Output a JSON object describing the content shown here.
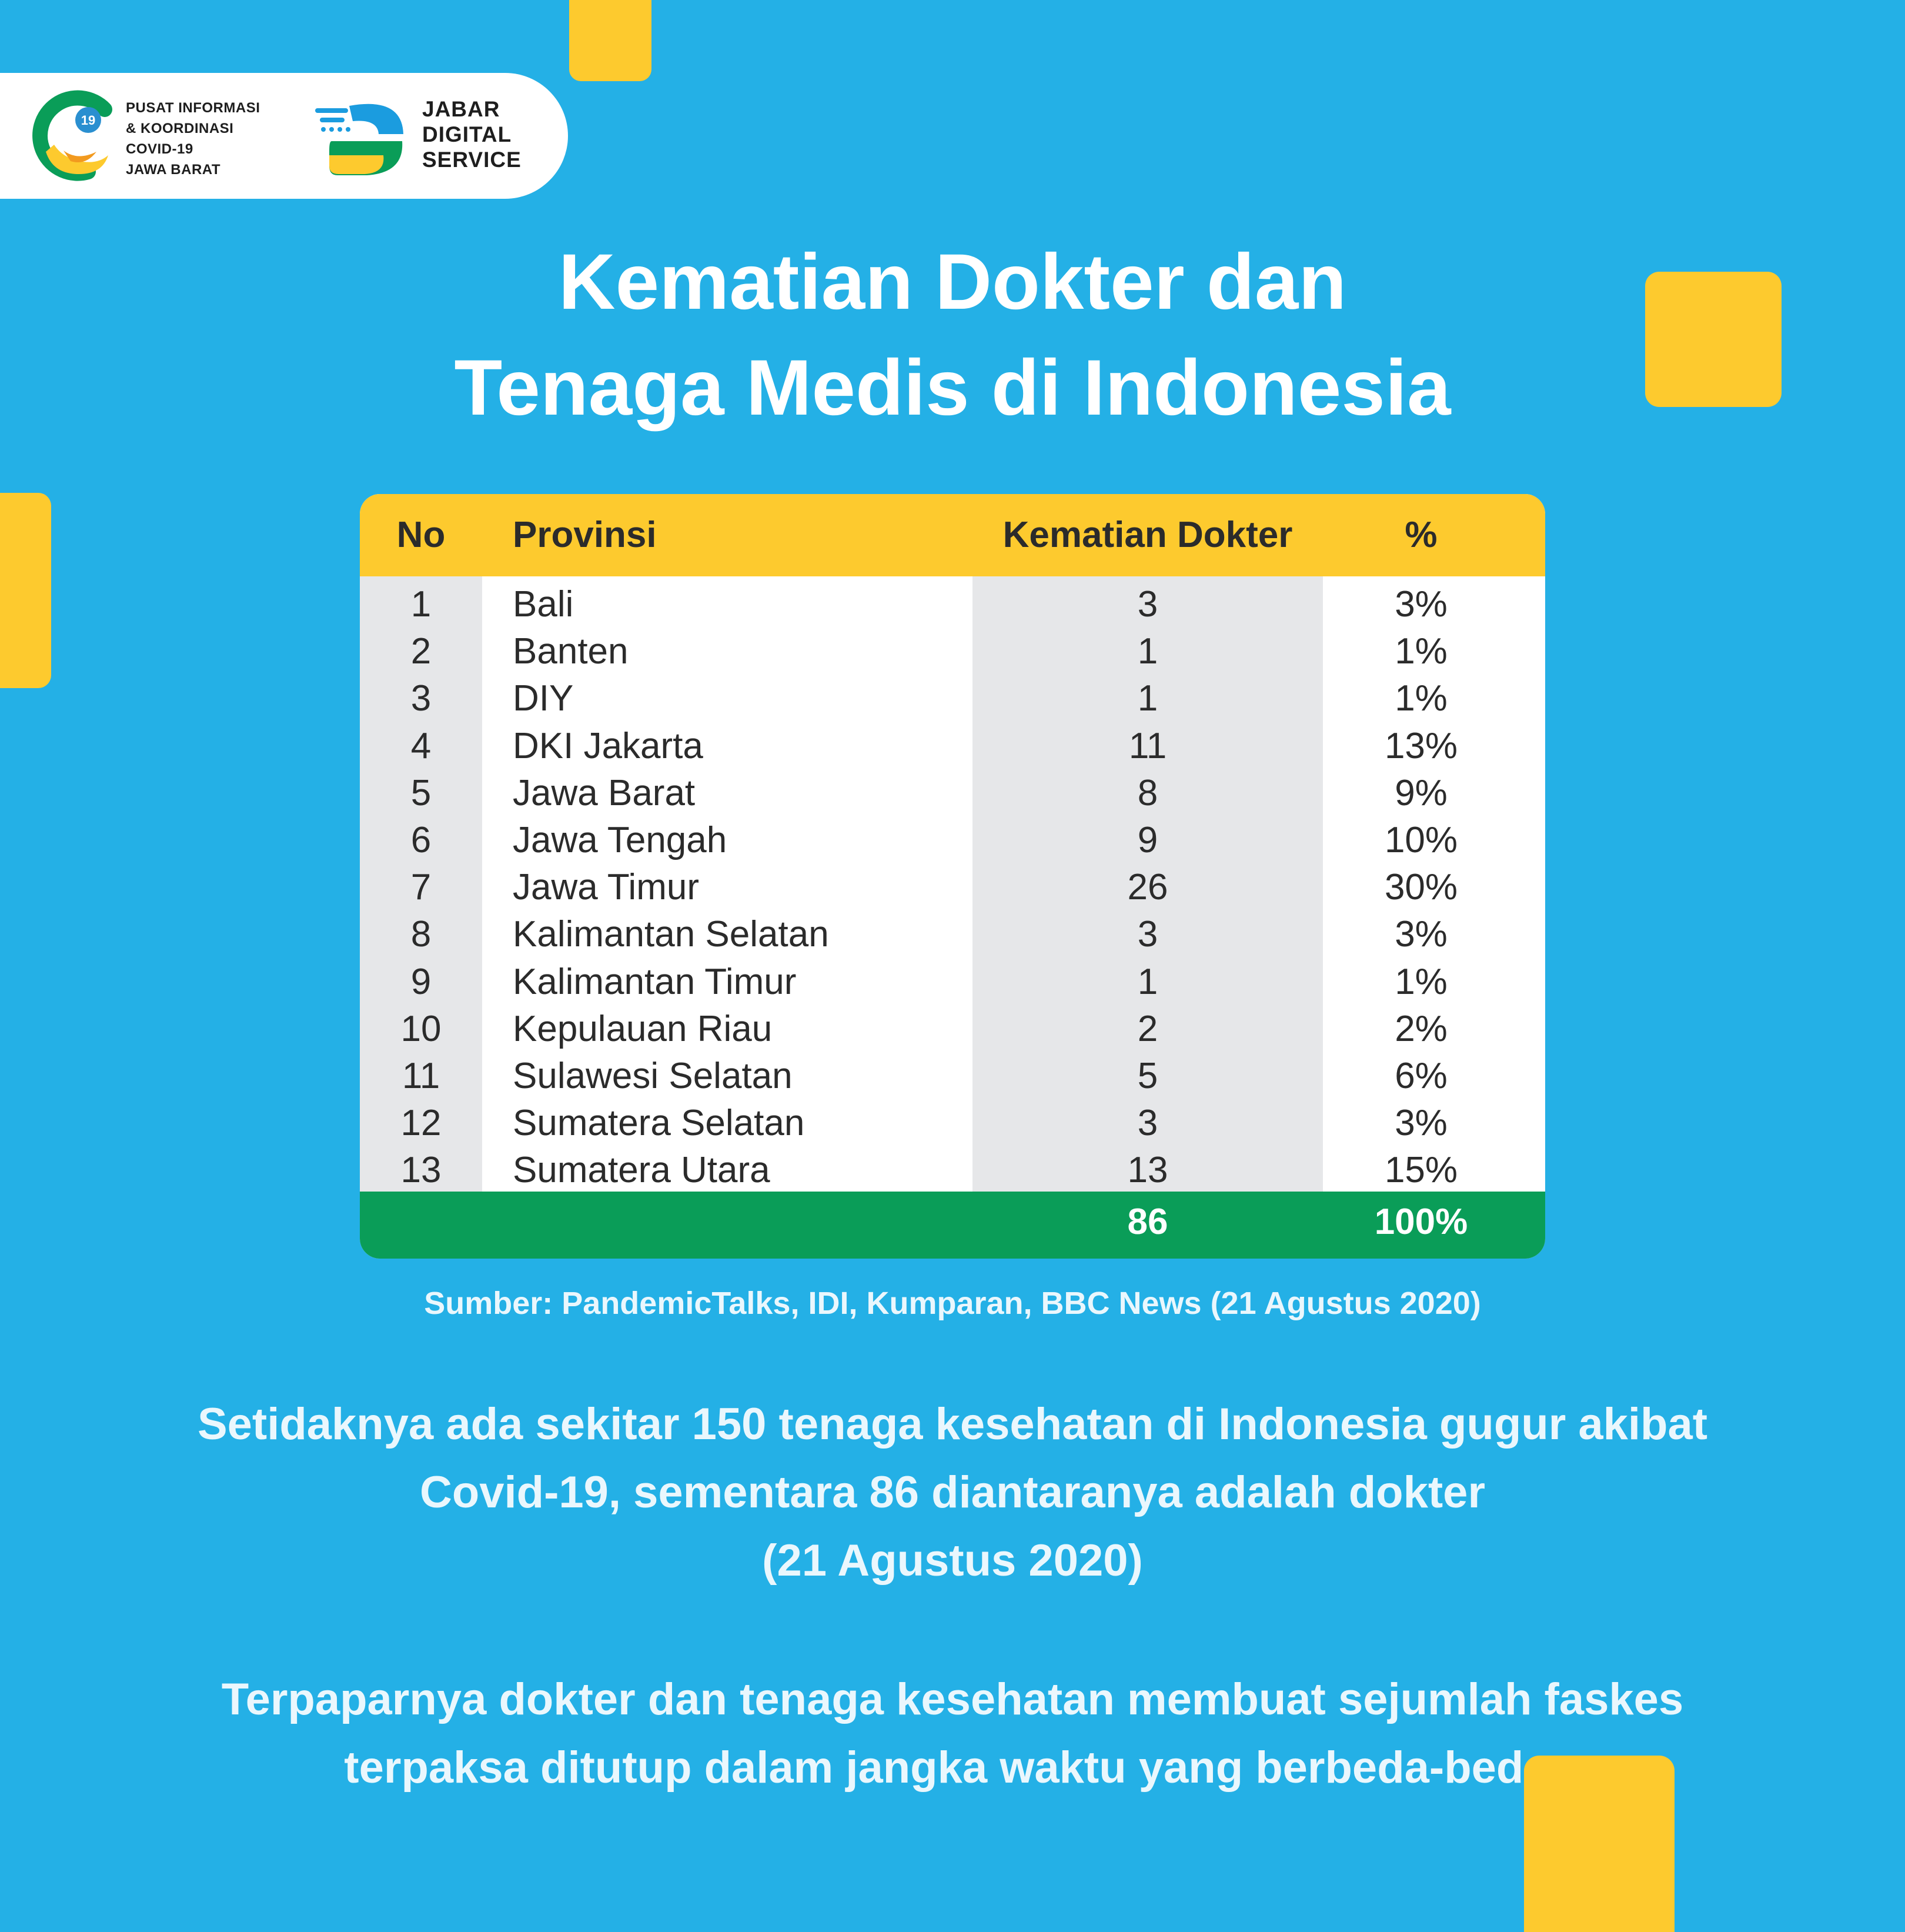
{
  "logos": {
    "pikobar": {
      "badge": "19",
      "lines": [
        "PUSAT INFORMASI",
        "& KOORDINASI",
        "COVID-19",
        "JAWA BARAT"
      ]
    },
    "jds": {
      "lines": [
        "JABAR",
        "DIGITAL",
        "SERVICE"
      ]
    }
  },
  "title": {
    "line1": "Kematian Dokter dan",
    "line2": "Tenaga Medis di Indonesia"
  },
  "colors": {
    "background": "#24b0e6",
    "accent_yellow": "#fdca2e",
    "total_green": "#0a9d58",
    "column_gray": "#e6e7e9"
  },
  "chart_data": {
    "type": "table",
    "columns": [
      "No",
      "Provinsi",
      "Kematian Dokter",
      "%"
    ],
    "rows": [
      {
        "no": "1",
        "province": "Bali",
        "deaths": 3,
        "percent": "3%"
      },
      {
        "no": "2",
        "province": "Banten",
        "deaths": 1,
        "percent": "1%"
      },
      {
        "no": "3",
        "province": "DIY",
        "deaths": 1,
        "percent": "1%"
      },
      {
        "no": "4",
        "province": "DKI Jakarta",
        "deaths": 11,
        "percent": "13%"
      },
      {
        "no": "5",
        "province": "Jawa Barat",
        "deaths": 8,
        "percent": "9%"
      },
      {
        "no": "6",
        "province": "Jawa Tengah",
        "deaths": 9,
        "percent": "10%"
      },
      {
        "no": "7",
        "province": "Jawa Timur",
        "deaths": 26,
        "percent": "30%"
      },
      {
        "no": "8",
        "province": "Kalimantan Selatan",
        "deaths": 3,
        "percent": "3%"
      },
      {
        "no": "9",
        "province": "Kalimantan Timur",
        "deaths": 1,
        "percent": "1%"
      },
      {
        "no": "10",
        "province": "Kepulauan Riau",
        "deaths": 2,
        "percent": "2%"
      },
      {
        "no": "11",
        "province": "Sulawesi Selatan",
        "deaths": 5,
        "percent": "6%"
      },
      {
        "no": "12",
        "province": "Sumatera Selatan",
        "deaths": 3,
        "percent": "3%"
      },
      {
        "no": "13",
        "province": "Sumatera Utara",
        "deaths": 13,
        "percent": "15%"
      }
    ],
    "total": {
      "deaths": 86,
      "percent": "100%"
    }
  },
  "source": "Sumber: PandemicTalks, IDI, Kumparan, BBC News (21 Agustus 2020)",
  "paragraph1": [
    "Setidaknya ada sekitar 150 tenaga kesehatan di Indonesia gugur akibat",
    "Covid-19, sementara 86 diantaranya adalah dokter",
    "(21 Agustus 2020)"
  ],
  "paragraph2": [
    "Terpaparnya dokter dan tenaga kesehatan membuat sejumlah faskes",
    "terpaksa ditutup dalam jangka waktu yang berbeda-beda."
  ]
}
